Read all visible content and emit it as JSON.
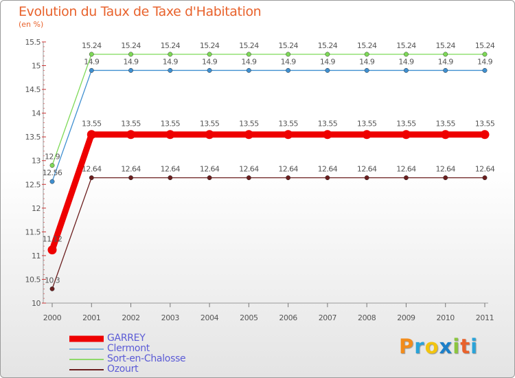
{
  "title": "Evolution du Taux de Taxe d'Habitation",
  "subtitle": "(en %)",
  "chart_data": {
    "type": "line",
    "title": "Evolution du Taux de Taxe d'Habitation",
    "ylabel": "(en %)",
    "xlabel": "",
    "ylim": [
      10,
      15.5
    ],
    "yticks": [
      "10",
      "10.5",
      "11",
      "11.5",
      "12",
      "12.5",
      "13",
      "13.5",
      "14",
      "14.5",
      "15",
      "15.5"
    ],
    "x": [
      "2000",
      "2001",
      "2002",
      "2003",
      "2004",
      "2005",
      "2006",
      "2007",
      "2008",
      "2009",
      "2010",
      "2011"
    ],
    "series": [
      {
        "name": "Ozourt",
        "color": "#6b1e1e",
        "values": [
          10.3,
          12.64,
          12.64,
          12.64,
          12.64,
          12.64,
          12.64,
          12.64,
          12.64,
          12.64,
          12.64,
          12.64
        ],
        "labels": [
          "10.3",
          "12.64",
          "12.64",
          "12.64",
          "12.64",
          "12.64",
          "12.64",
          "12.64",
          "12.64",
          "12.64",
          "12.64",
          "12.64"
        ]
      },
      {
        "name": "Clermont",
        "color": "#3f8fd0",
        "values": [
          12.56,
          14.9,
          14.9,
          14.9,
          14.9,
          14.9,
          14.9,
          14.9,
          14.9,
          14.9,
          14.9,
          14.9
        ],
        "labels": [
          "12.56",
          "14.9",
          "14.9",
          "14.9",
          "14.9",
          "14.9",
          "14.9",
          "14.9",
          "14.9",
          "14.9",
          "14.9",
          "14.9"
        ]
      },
      {
        "name": "Sort-en-Chalosse",
        "color": "#7ed957",
        "values": [
          12.9,
          15.24,
          15.24,
          15.24,
          15.24,
          15.24,
          15.24,
          15.24,
          15.24,
          15.24,
          15.24,
          15.24
        ],
        "labels": [
          "12.9",
          "15.24",
          "15.24",
          "15.24",
          "15.24",
          "15.24",
          "15.24",
          "15.24",
          "15.24",
          "15.24",
          "15.24",
          "15.24"
        ]
      },
      {
        "name": "GARREY",
        "color": "#ee0000",
        "values": [
          11.12,
          13.55,
          13.55,
          13.55,
          13.55,
          13.55,
          13.55,
          13.55,
          13.55,
          13.55,
          13.55,
          13.55
        ],
        "labels": [
          "11.12",
          "13.55",
          "13.55",
          "13.55",
          "13.55",
          "13.55",
          "13.55",
          "13.55",
          "13.55",
          "13.55",
          "13.55",
          "13.55"
        ]
      }
    ]
  },
  "legend": [
    {
      "name": "GARREY",
      "color": "#ee0000"
    },
    {
      "name": "Clermont",
      "color": "#7fb2d9"
    },
    {
      "name": "Sort-en-Chalosse",
      "color": "#8ed96a"
    },
    {
      "name": "Ozourt",
      "color": "#6b1e1e"
    }
  ],
  "logo": {
    "text": "Proxiti",
    "letters": [
      {
        "ch": "P",
        "color": "#f28c1c"
      },
      {
        "ch": "r",
        "color": "#2aa3d8"
      },
      {
        "ch": "o",
        "color": "#f2c40f"
      },
      {
        "ch": "x",
        "color": "#1c7fc9"
      },
      {
        "ch": "i",
        "color": "#8bc53f"
      },
      {
        "ch": "t",
        "color": "#e8622c"
      },
      {
        "ch": "i",
        "color": "#2aa3d8"
      }
    ]
  }
}
